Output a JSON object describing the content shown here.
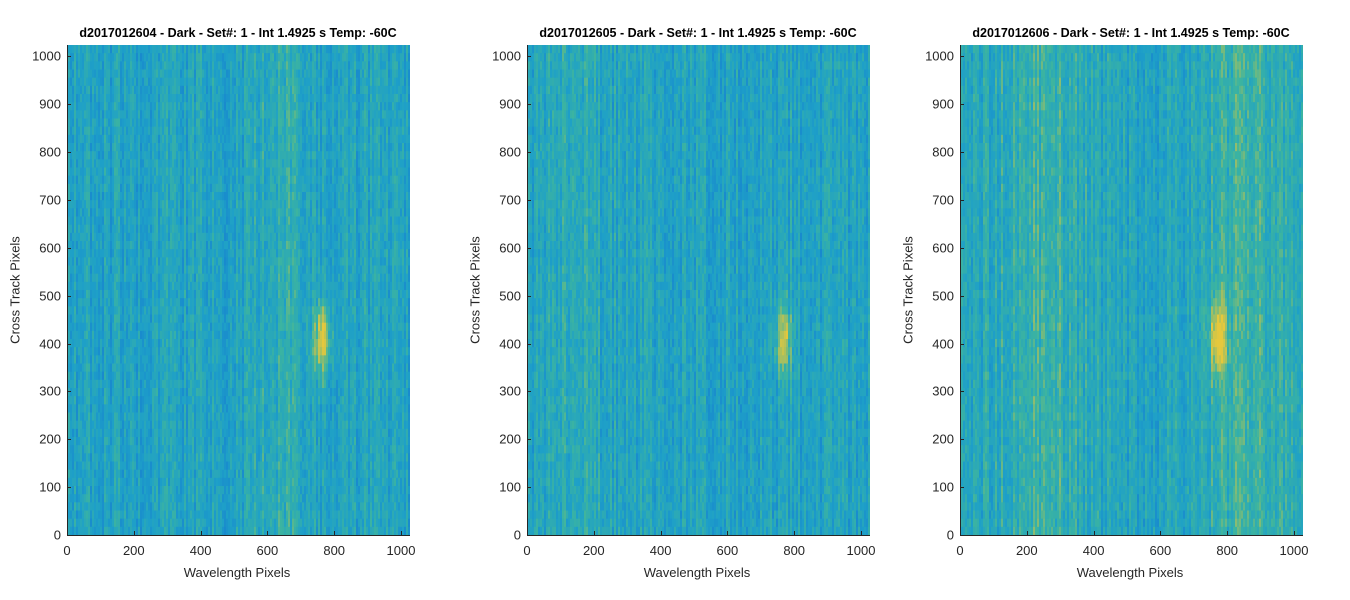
{
  "chart_data": [
    {
      "type": "heatmap",
      "title": "d2017012604 - Dark - Set#: 1 - Int 1.4925 s Temp: -60C",
      "xlabel": "Wavelength Pixels",
      "ylabel": "Cross Track Pixels",
      "xlim": [
        0,
        1024
      ],
      "ylim": [
        0,
        1024
      ],
      "xticks": [
        0,
        200,
        400,
        600,
        800,
        1000
      ],
      "yticks": [
        0,
        100,
        200,
        300,
        400,
        500,
        600,
        700,
        800,
        900,
        1000
      ],
      "colormap": "parula",
      "features": [
        {
          "kind": "band",
          "x_center": 640,
          "width": 160,
          "level": 0.55
        },
        {
          "kind": "hotspot",
          "x": 760,
          "y": 410,
          "level": 0.85
        }
      ]
    },
    {
      "type": "heatmap",
      "title": "d2017012605 - Dark - Set#: 1 - Int 1.4925 s Temp: -60C",
      "xlabel": "Wavelength Pixels",
      "ylabel": "Cross Track Pixels",
      "xlim": [
        0,
        1024
      ],
      "ylim": [
        0,
        1024
      ],
      "xticks": [
        0,
        200,
        400,
        600,
        800,
        1000
      ],
      "yticks": [
        0,
        100,
        200,
        300,
        400,
        500,
        600,
        700,
        800,
        900,
        1000
      ],
      "colormap": "parula",
      "features": [
        {
          "kind": "band",
          "x_center": 150,
          "width": 250,
          "level": 0.45
        },
        {
          "kind": "hotspot",
          "x": 765,
          "y": 410,
          "level": 0.8
        }
      ]
    },
    {
      "type": "heatmap",
      "title": "d2017012606 - Dark - Set#: 1 - Int 1.4925 s Temp: -60C",
      "xlabel": "Wavelength Pixels",
      "ylabel": "Cross Track Pixels",
      "xlim": [
        0,
        1024
      ],
      "ylim": [
        0,
        1024
      ],
      "xticks": [
        0,
        200,
        400,
        600,
        800,
        1000
      ],
      "yticks": [
        0,
        100,
        200,
        300,
        400,
        500,
        600,
        700,
        800,
        900,
        1000
      ],
      "colormap": "parula",
      "features": [
        {
          "kind": "band",
          "x_center": 250,
          "width": 300,
          "level": 0.6
        },
        {
          "kind": "band",
          "x_center": 850,
          "width": 300,
          "level": 0.6
        },
        {
          "kind": "hotspot",
          "x": 770,
          "y": 410,
          "level": 0.9
        }
      ]
    }
  ]
}
